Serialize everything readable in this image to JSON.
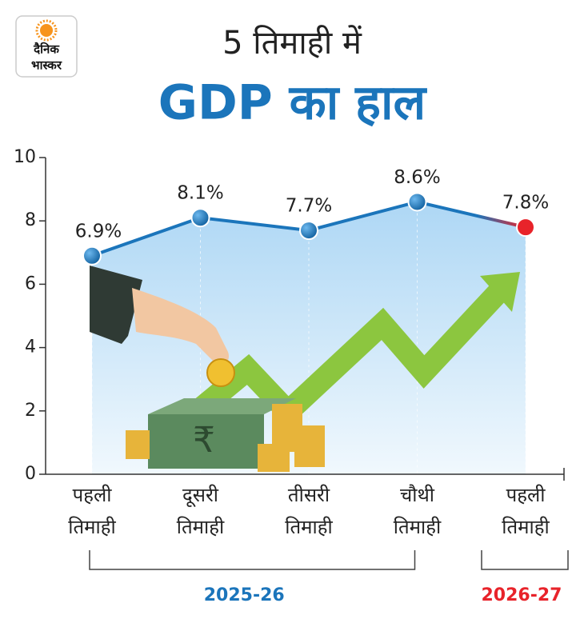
{
  "logo": [
    "दैनिक",
    "भास्कर"
  ],
  "chart_data": {
    "type": "line",
    "title": "5 तिमाही में",
    "subtitle": "GDP का हाल",
    "categories": [
      [
        "पहली",
        "तिमाही"
      ],
      [
        "दूसरी",
        "तिमाही"
      ],
      [
        "तीसरी",
        "तिमाही"
      ],
      [
        "चौथी",
        "तिमाही"
      ],
      [
        "पहली",
        "तिमाही"
      ]
    ],
    "values": [
      6.9,
      8.1,
      7.7,
      8.6,
      7.8
    ],
    "value_labels": [
      "6.9%",
      "8.1%",
      "7.7%",
      "8.6%",
      "7.8%"
    ],
    "color": "#1b75bb",
    "last_point_color": "#e8232a",
    "ylim": [
      0,
      10
    ],
    "yticks": [
      0,
      2,
      4,
      6,
      8,
      10
    ],
    "groups": [
      {
        "label": "2025-26",
        "color": "#1b75bb",
        "count": 4
      },
      {
        "label": "2026-27",
        "color": "#e8232a",
        "count": 1
      }
    ]
  }
}
